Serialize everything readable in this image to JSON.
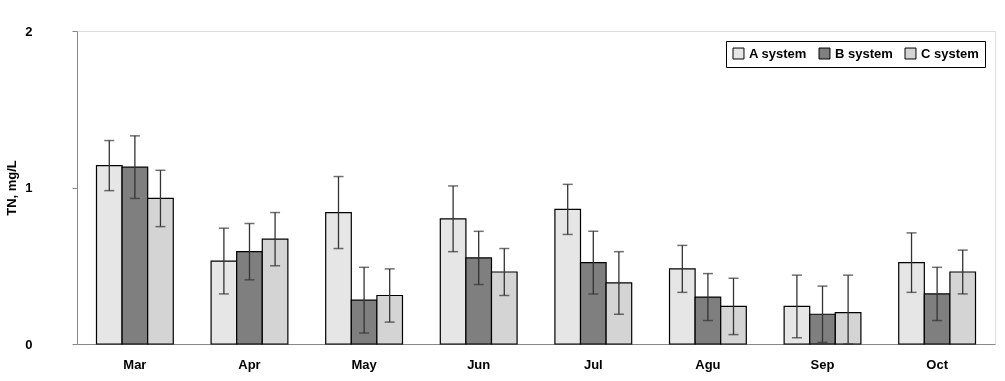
{
  "chart_data": {
    "type": "bar",
    "ylabel": "TN, mg/L",
    "categories": [
      "Mar",
      "Apr",
      "May",
      "Jun",
      "Jul",
      "Agu",
      "Sep",
      "Oct"
    ],
    "series": [
      {
        "name": "A system",
        "color": "#e6e6e6",
        "values": [
          1.14,
          0.53,
          0.84,
          0.8,
          0.86,
          0.48,
          0.24,
          0.52
        ],
        "errors": [
          0.16,
          0.21,
          0.23,
          0.21,
          0.16,
          0.15,
          0.2,
          0.19
        ]
      },
      {
        "name": "B system",
        "color": "#7f7f7f",
        "values": [
          1.13,
          0.59,
          0.28,
          0.55,
          0.52,
          0.3,
          0.19,
          0.32
        ],
        "errors": [
          0.2,
          0.18,
          0.21,
          0.17,
          0.2,
          0.15,
          0.18,
          0.17
        ]
      },
      {
        "name": "C system",
        "color": "#d4d4d4",
        "values": [
          0.93,
          0.67,
          0.31,
          0.46,
          0.39,
          0.24,
          0.2,
          0.46
        ],
        "errors": [
          0.18,
          0.17,
          0.17,
          0.15,
          0.2,
          0.18,
          [
            0.0,
            0.44
          ],
          0.14
        ]
      }
    ],
    "ylim": [
      0,
      2
    ],
    "yticks": [
      0,
      1,
      2
    ],
    "grid": false,
    "legend": "top right"
  }
}
